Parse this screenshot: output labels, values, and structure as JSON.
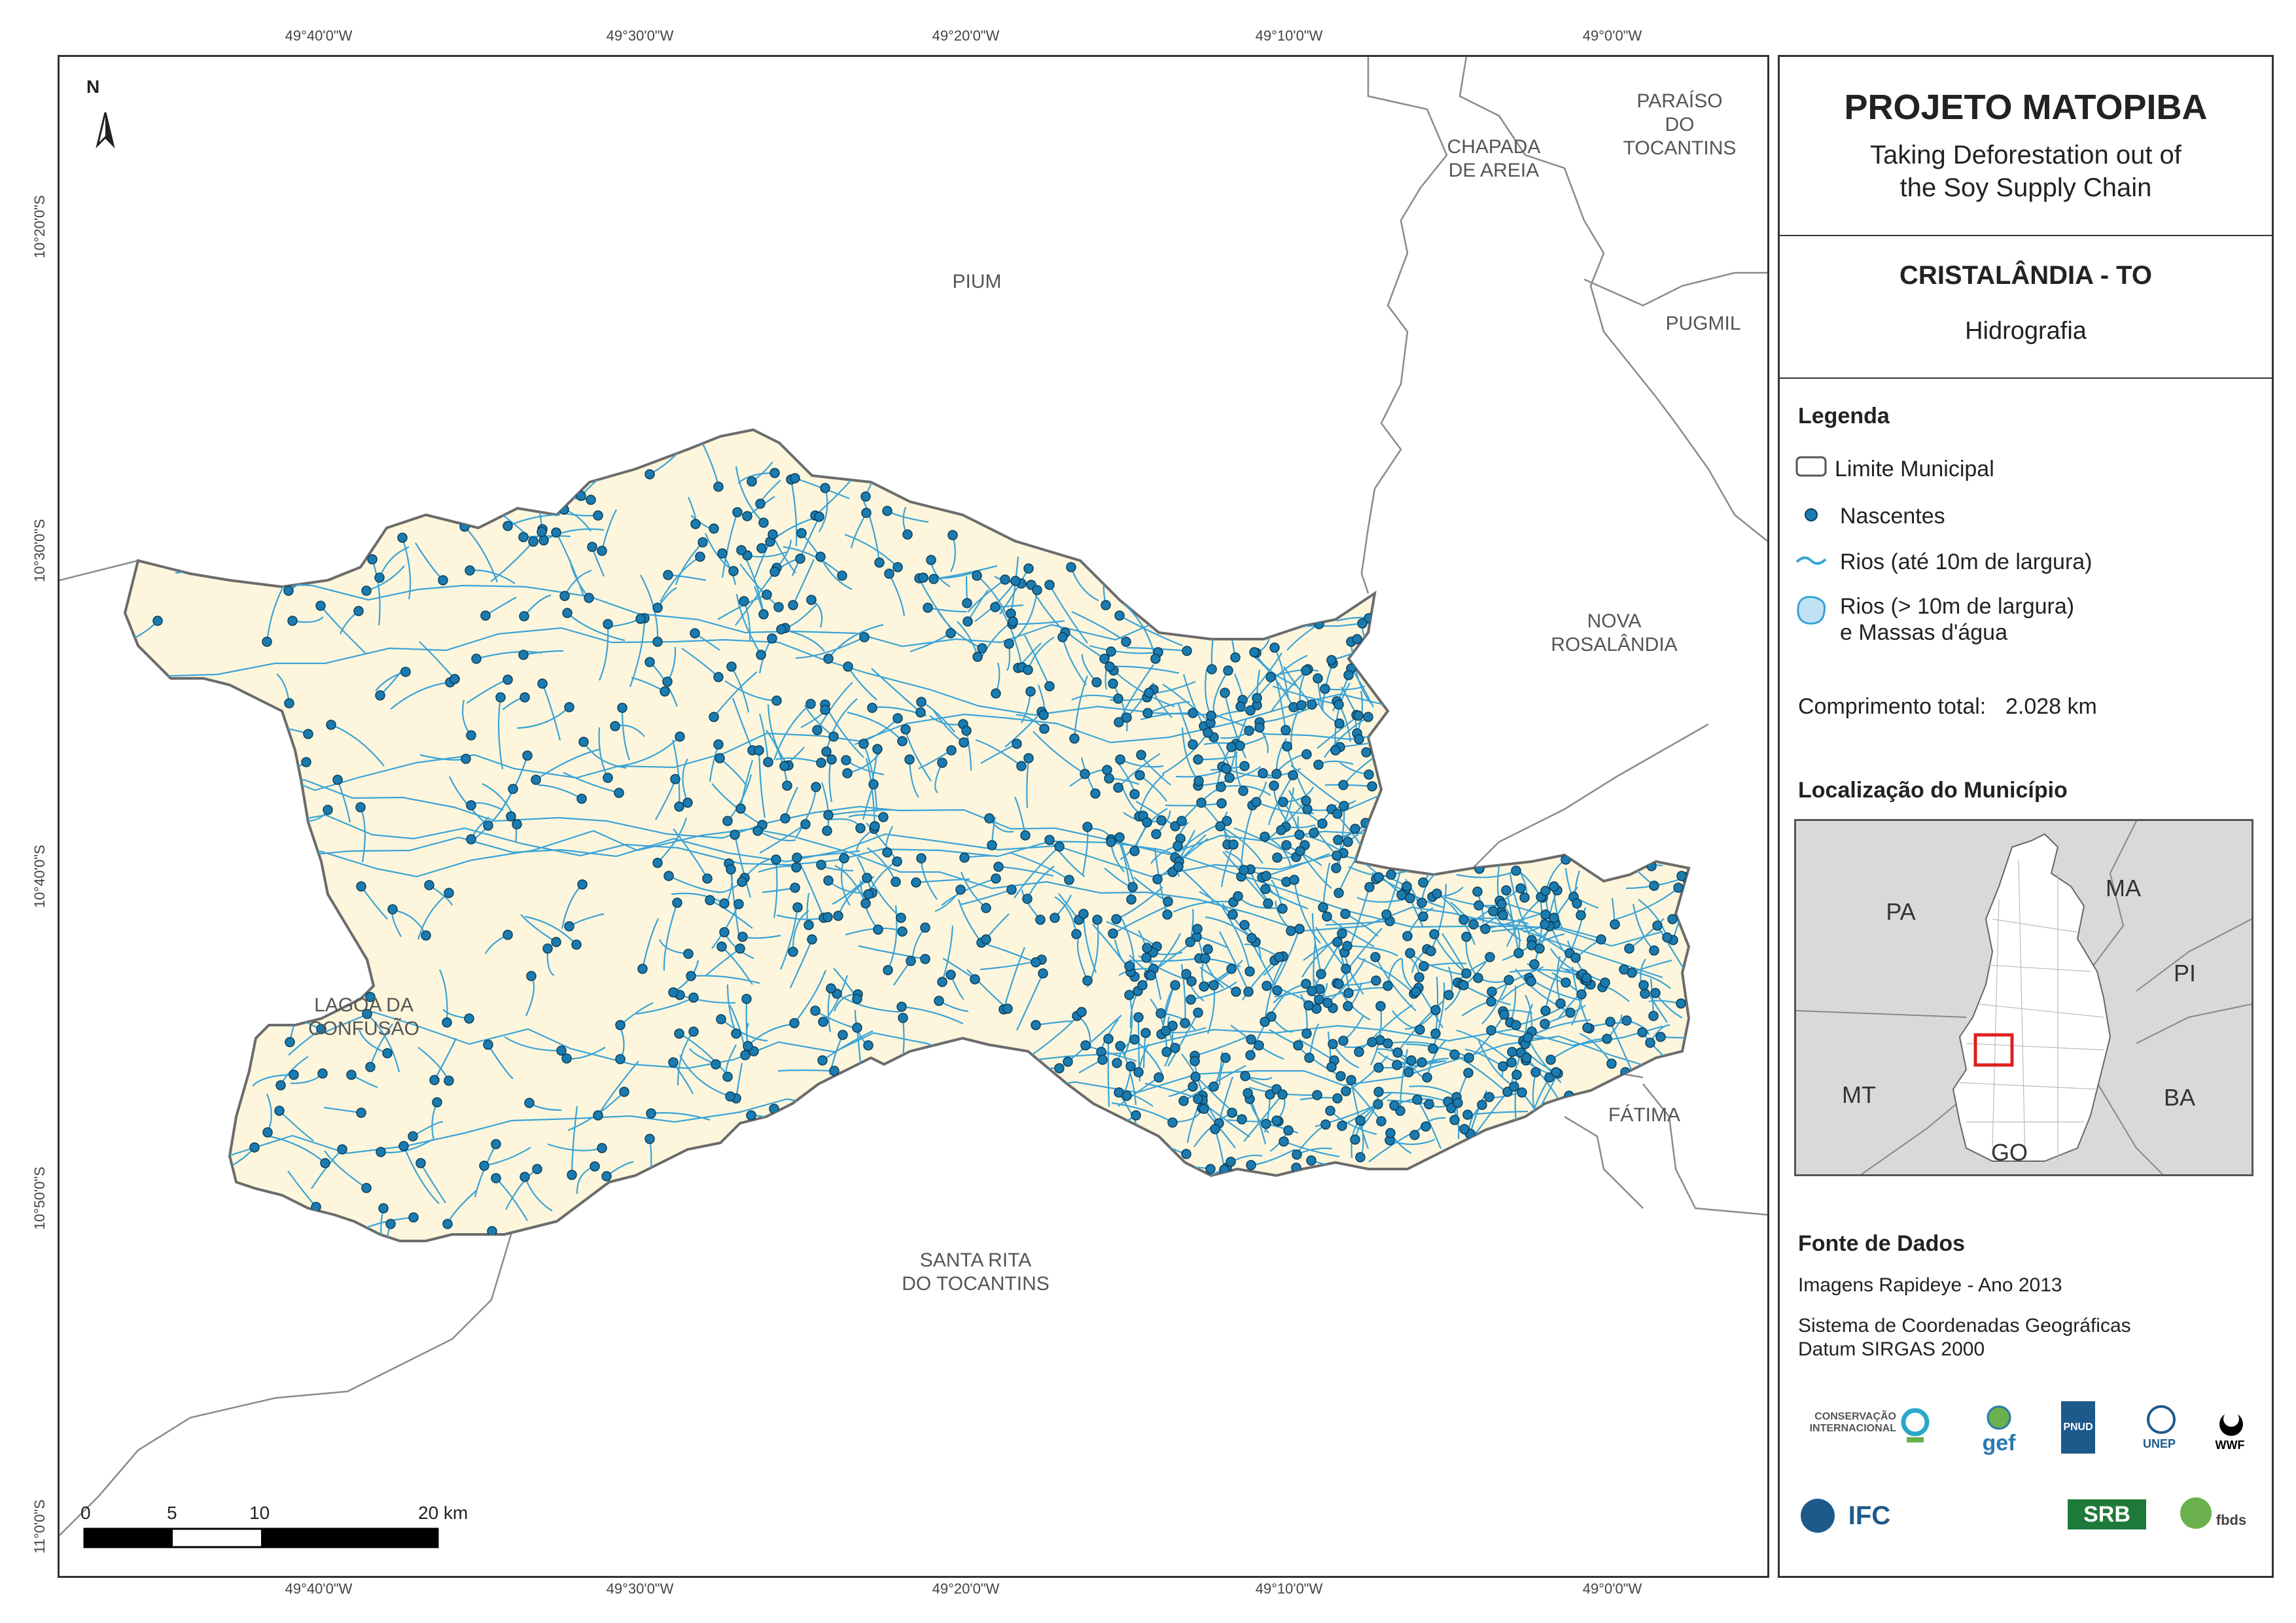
{
  "coordinates": {
    "top": [
      "49°40'0\"W",
      "49°30'0\"W",
      "49°20'0\"W",
      "49°10'0\"W",
      "49°0'0\"W"
    ],
    "bottom": [
      "49°40'0\"W",
      "49°30'0\"W",
      "49°20'0\"W",
      "49°10'0\"W",
      "49°0'0\"W"
    ],
    "left": [
      "10°20'0\"S",
      "10°30'0\"S",
      "10°40'0\"S",
      "10°50'0\"S",
      "11°0'0\"S"
    ]
  },
  "north_arrow": "N",
  "municipalities": {
    "chapada": "CHAPADA\nDE AREIA",
    "paraiso": "PARAÍSO DO\nTOCANTINS",
    "pium": "PIUM",
    "pugmil": "PUGMIL",
    "nova": "NOVA\nROSALÂNDIA",
    "lagoa": "LAGOA DA\nCONFUSÃO",
    "fatima": "FÁTIMA",
    "santa_rita": "SANTA RITA\nDO TOCANTINS"
  },
  "scale_bar": {
    "labels": [
      "0",
      "5",
      "10",
      "20 km"
    ]
  },
  "panel": {
    "project_title": "PROJETO MATOPIBA",
    "project_subtitle": "Taking Deforestation out of\nthe Soy Supply Chain",
    "municipality": "CRISTALÂNDIA - TO",
    "theme": "Hidrografia",
    "legend": {
      "title": "Legenda",
      "items": [
        "Limite Municipal",
        "Nascentes",
        "Rios (até 10m de largura)",
        "Rios (> 10m de largura)\ne Massas d'água"
      ]
    },
    "total_length": {
      "label": "Comprimento total:",
      "value": "2.028 km"
    },
    "location": {
      "title": "Localização do Município",
      "labels": {
        "pa": "PA",
        "ma": "MA",
        "pi": "PI",
        "mt": "MT",
        "ba": "BA",
        "go": "GO"
      }
    },
    "sources": {
      "title": "Fonte de Dados",
      "imagery": "Imagens Rapideye - Ano 2013",
      "crs": "Sistema de Coordenadas Geográficas\nDatum SIRGAS 2000"
    },
    "logos": {
      "ci": "CONSERVAÇÃO\nINTERNACIONAL",
      "gef": "gef",
      "pnud": "PNUD",
      "unep": "UNEP",
      "wwf": "WWF",
      "ifc": "IFC",
      "srb": "SRB",
      "fbds": "fbds"
    }
  },
  "colors": {
    "municipality_fill": "#fdf6dc",
    "river": "#3aa3d6",
    "spring": "#1a7bb0",
    "boundary": "#888888",
    "state_box_highlight": "#e02020"
  }
}
